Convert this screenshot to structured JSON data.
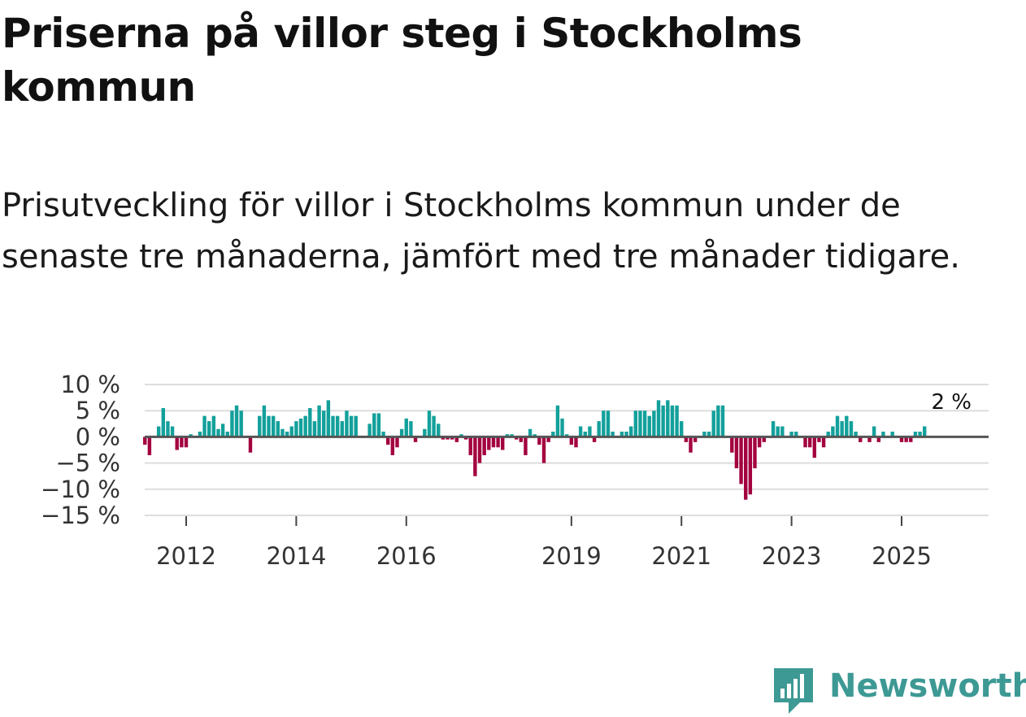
{
  "title": "Priserna på villor steg i Stockholms kommun",
  "subtitle": "Prisutveckling för villor i Stockholms kommun under de senaste tre månaderna, jämfört med tre månader tidigare.",
  "brand": {
    "name": "Newsworthy",
    "color": "#3d9994",
    "icon": "bar-chart-speech-bubble-icon"
  },
  "colors": {
    "positive": "#13a09b",
    "negative": "#a3003f",
    "zero_line": "#555555",
    "grid": "#dddddd"
  },
  "chart_data": {
    "type": "bar",
    "title": "Priserna på villor steg i Stockholms kommun",
    "xlabel": "",
    "ylabel": "",
    "ylim": [
      -15,
      10
    ],
    "x_start": 2011.25,
    "x_step": 0.083333,
    "y_ticks": [
      10,
      5,
      0,
      -5,
      -10,
      -15
    ],
    "y_tick_labels": [
      "10 %",
      "5 %",
      "0 %",
      "−5 %",
      "−10 %",
      "−15 %"
    ],
    "x_ticks": [
      2012,
      2014,
      2016,
      2019,
      2021,
      2023,
      2025
    ],
    "x_tick_labels": [
      "2012",
      "2014",
      "2016",
      "2019",
      "2021",
      "2023",
      "2025"
    ],
    "last_value_label": "2 %",
    "values": [
      -1.5,
      -3.5,
      0,
      2,
      5.5,
      3,
      2,
      -2.5,
      -2,
      -2,
      0.5,
      0,
      1,
      4,
      3,
      4,
      1.5,
      2.5,
      1,
      5,
      6,
      5,
      0,
      -3,
      0,
      4,
      6,
      4,
      4,
      3,
      1.5,
      1,
      2,
      3,
      3.5,
      4,
      5.5,
      3,
      6,
      5,
      7,
      4,
      4,
      3,
      5,
      4,
      4,
      0,
      0,
      2.5,
      4.5,
      4.5,
      1,
      -1.5,
      -3.5,
      -2,
      1.5,
      3.5,
      3,
      -1,
      0,
      1.5,
      5,
      4,
      2.5,
      -0.5,
      -0.5,
      -0.5,
      -1,
      0.5,
      -0.5,
      -3.5,
      -7.5,
      -5,
      -3.5,
      -2.5,
      -2,
      -2,
      -2.5,
      0.5,
      0.5,
      -0.5,
      -1,
      -3.5,
      1.5,
      0.5,
      -1.5,
      -5,
      -1,
      1,
      6,
      3.5,
      0.5,
      -1.5,
      -2,
      2,
      1,
      2,
      -1,
      3,
      5,
      5,
      1,
      0,
      1,
      1,
      2,
      5,
      5,
      5,
      4,
      5,
      7,
      6,
      7,
      6,
      6,
      3,
      -1,
      -3,
      -1,
      0,
      1,
      1,
      5,
      6,
      6,
      0,
      -3,
      -6,
      -9,
      -12,
      -11,
      -6,
      -2,
      -1,
      0,
      3,
      2,
      2,
      0,
      1,
      1,
      0,
      -2,
      -2,
      -4,
      -1,
      -2,
      1,
      2,
      4,
      3,
      4,
      3,
      1,
      -1,
      0,
      -1,
      2,
      -1,
      1,
      0,
      1,
      0,
      -1,
      -1,
      -1,
      1,
      1,
      2
    ]
  }
}
